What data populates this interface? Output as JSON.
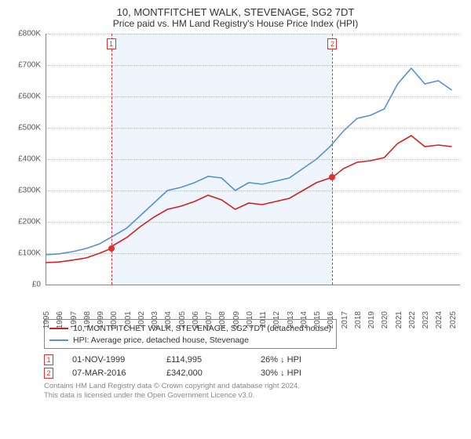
{
  "title": "10, MONTFITCHET WALK, STEVENAGE, SG2 7DT",
  "subtitle": "Price paid vs. HM Land Registry's House Price Index (HPI)",
  "chart": {
    "type": "line",
    "background_color": "#ffffff",
    "plot_band_color": "#eef5fc",
    "plot_band_years": [
      1999.84,
      2016.18
    ],
    "grid_color": "#bbbbbb",
    "axis_color": "#888888",
    "ylim": [
      0,
      800000
    ],
    "ytick_step": 100000,
    "ytick_labels": [
      "£0",
      "£100K",
      "£200K",
      "£300K",
      "£400K",
      "£500K",
      "£600K",
      "£700K",
      "£800K"
    ],
    "xlim": [
      1995,
      2025.6
    ],
    "xtick_step": 1,
    "xtick_labels": [
      "1995",
      "1996",
      "1997",
      "1998",
      "1999",
      "2000",
      "2001",
      "2002",
      "2003",
      "2004",
      "2005",
      "2006",
      "2007",
      "2008",
      "2009",
      "2010",
      "2011",
      "2012",
      "2013",
      "2014",
      "2015",
      "2016",
      "2017",
      "2018",
      "2019",
      "2020",
      "2021",
      "2022",
      "2023",
      "2024",
      "2025"
    ],
    "label_fontsize": 10,
    "title_fontsize": 13,
    "line_width": 1.6,
    "series": [
      {
        "label": "10, MONTFITCHET WALK, STEVENAGE, SG2 7DT (detached house)",
        "color": "#d62020",
        "x": [
          1995,
          1996,
          1997,
          1998,
          1999,
          1999.84,
          2000,
          2001,
          2002,
          2003,
          2004,
          2005,
          2006,
          2007,
          2008,
          2009,
          2010,
          2011,
          2012,
          2013,
          2014,
          2015,
          2016,
          2016.18,
          2017,
          2018,
          2019,
          2020,
          2021,
          2022,
          2023,
          2024,
          2025
        ],
        "y": [
          70000,
          72000,
          78000,
          85000,
          100000,
          114995,
          125000,
          150000,
          185000,
          215000,
          240000,
          250000,
          265000,
          285000,
          270000,
          240000,
          260000,
          255000,
          265000,
          275000,
          300000,
          325000,
          340000,
          342000,
          370000,
          390000,
          395000,
          405000,
          450000,
          475000,
          440000,
          445000,
          440000
        ]
      },
      {
        "label": "HPI: Average price, detached house, Stevenage",
        "color": "#5a8fd6",
        "x": [
          1995,
          1996,
          1997,
          1998,
          1999,
          2000,
          2001,
          2002,
          2003,
          2004,
          2005,
          2006,
          2007,
          2008,
          2009,
          2010,
          2011,
          2012,
          2013,
          2014,
          2015,
          2016,
          2017,
          2018,
          2019,
          2020,
          2021,
          2022,
          2023,
          2024,
          2025
        ],
        "y": [
          95000,
          98000,
          105000,
          115000,
          130000,
          155000,
          180000,
          220000,
          260000,
          300000,
          310000,
          325000,
          345000,
          340000,
          300000,
          325000,
          320000,
          330000,
          340000,
          370000,
          400000,
          440000,
          490000,
          530000,
          540000,
          560000,
          640000,
          690000,
          640000,
          650000,
          620000
        ]
      }
    ],
    "markers": [
      {
        "id": "1",
        "year": 1999.84,
        "dot_y": 114995
      },
      {
        "id": "2",
        "year": 2016.18,
        "dot_y": 342000
      }
    ],
    "marker_color": "#e03030",
    "dot_color": "#e03030"
  },
  "legend": {
    "border_color": "#888888",
    "items": [
      {
        "color": "#d62020",
        "label": "10, MONTFITCHET WALK, STEVENAGE, SG2 7DT (detached house)"
      },
      {
        "color": "#5a8fd6",
        "label": "HPI: Average price, detached house, Stevenage"
      }
    ]
  },
  "sales": [
    {
      "id": "1",
      "date": "01-NOV-1999",
      "price": "£114,995",
      "diff": "26% ↓ HPI"
    },
    {
      "id": "2",
      "date": "07-MAR-2016",
      "price": "£342,000",
      "diff": "30% ↓ HPI"
    }
  ],
  "footer_line1": "Contains HM Land Registry data © Crown copyright and database right 2024.",
  "footer_line2": "This data is licensed under the Open Government Licence v3.0."
}
